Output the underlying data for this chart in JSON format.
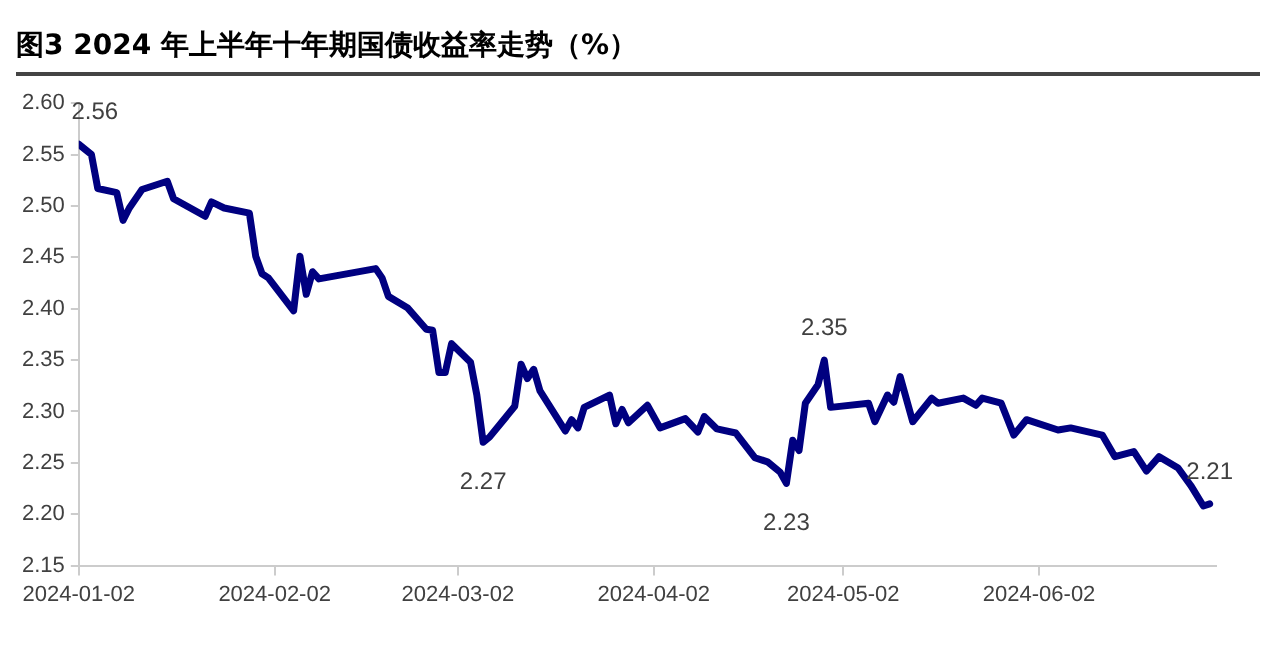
{
  "chart_data": {
    "type": "line",
    "title": "图3  2024 年上半年十年期国债收益率走势（%）",
    "x": [
      "2024-01-02",
      "2024-01-04",
      "2024-01-05",
      "2024-01-08",
      "2024-01-09",
      "2024-01-10",
      "2024-01-12",
      "2024-01-16",
      "2024-01-17",
      "2024-01-22",
      "2024-01-23",
      "2024-01-25",
      "2024-01-29",
      "2024-01-30",
      "2024-01-31",
      "2024-02-01",
      "2024-02-05",
      "2024-02-06",
      "2024-02-07",
      "2024-02-08",
      "2024-02-09",
      "2024-02-18",
      "2024-02-19",
      "2024-02-20",
      "2024-02-23",
      "2024-02-26",
      "2024-02-27",
      "2024-02-28",
      "2024-02-29",
      "2024-03-01",
      "2024-03-04",
      "2024-03-05",
      "2024-03-06",
      "2024-03-07",
      "2024-03-11",
      "2024-03-12",
      "2024-03-13",
      "2024-03-14",
      "2024-03-15",
      "2024-03-19",
      "2024-03-20",
      "2024-03-21",
      "2024-03-22",
      "2024-03-26",
      "2024-03-27",
      "2024-03-28",
      "2024-03-29",
      "2024-04-01",
      "2024-04-03",
      "2024-04-07",
      "2024-04-09",
      "2024-04-10",
      "2024-04-12",
      "2024-04-15",
      "2024-04-18",
      "2024-04-20",
      "2024-04-22",
      "2024-04-23",
      "2024-04-24",
      "2024-04-25",
      "2024-04-26",
      "2024-04-28",
      "2024-04-29",
      "2024-04-30",
      "2024-05-06",
      "2024-05-07",
      "2024-05-09",
      "2024-05-10",
      "2024-05-11",
      "2024-05-13",
      "2024-05-16",
      "2024-05-17",
      "2024-05-21",
      "2024-05-23",
      "2024-05-24",
      "2024-05-27",
      "2024-05-29",
      "2024-05-31",
      "2024-06-05",
      "2024-06-07",
      "2024-06-12",
      "2024-06-14",
      "2024-06-17",
      "2024-06-19",
      "2024-06-21",
      "2024-06-24",
      "2024-06-26",
      "2024-06-28",
      "2024-06-29"
    ],
    "series": [
      {
        "color": "#000080",
        "values": [
          2.56,
          2.55,
          2.517,
          2.513,
          2.486,
          2.498,
          2.516,
          2.524,
          2.507,
          2.49,
          2.504,
          2.498,
          2.493,
          2.451,
          2.434,
          2.43,
          2.398,
          2.451,
          2.414,
          2.436,
          2.429,
          2.439,
          2.43,
          2.412,
          2.401,
          2.38,
          2.379,
          2.338,
          2.338,
          2.366,
          2.348,
          2.316,
          2.27,
          2.275,
          2.305,
          2.346,
          2.332,
          2.341,
          2.32,
          2.281,
          2.292,
          2.284,
          2.304,
          2.316,
          2.288,
          2.302,
          2.289,
          2.306,
          2.284,
          2.293,
          2.28,
          2.295,
          2.283,
          2.279,
          2.255,
          2.251,
          2.241,
          2.23,
          2.272,
          2.262,
          2.308,
          2.326,
          2.35,
          2.304,
          2.308,
          2.29,
          2.316,
          2.309,
          2.334,
          2.29,
          2.313,
          2.308,
          2.313,
          2.306,
          2.313,
          2.308,
          2.277,
          2.292,
          2.282,
          2.284,
          2.277,
          2.256,
          2.261,
          2.242,
          2.256,
          2.245,
          2.228,
          2.208,
          2.21
        ]
      }
    ],
    "xlim": [
      "2024-01-02",
      "2024-06-30"
    ],
    "xticks": [
      "2024-01-02",
      "2024-02-02",
      "2024-03-02",
      "2024-04-02",
      "2024-05-02",
      "2024-06-02"
    ],
    "ylim": [
      2.15,
      2.6
    ],
    "yticks": [
      {
        "value": 2.15,
        "label": "2.15"
      },
      {
        "value": 2.2,
        "label": "2.20"
      },
      {
        "value": 2.25,
        "label": "2.25"
      },
      {
        "value": 2.3,
        "label": "2.30"
      },
      {
        "value": 2.35,
        "label": "2.35"
      },
      {
        "value": 2.4,
        "label": "2.40"
      },
      {
        "value": 2.45,
        "label": "2.45"
      },
      {
        "value": 2.5,
        "label": "2.50"
      },
      {
        "value": 2.55,
        "label": "2.55"
      },
      {
        "value": 2.6,
        "label": "2.60"
      }
    ],
    "annotations": [
      {
        "text": "2.56",
        "x": "2024-01-02",
        "y": 2.56
      },
      {
        "text": "2.27",
        "x": "2024-03-06",
        "y": 2.27
      },
      {
        "text": "2.23",
        "x": "2024-04-23",
        "y": 2.23
      },
      {
        "text": "2.35",
        "x": "2024-04-29",
        "y": 2.35
      },
      {
        "text": "2.21",
        "x": "2024-06-29",
        "y": 2.21
      }
    ],
    "grid": false,
    "legend": false,
    "marker": "none",
    "line_style": "solid"
  }
}
